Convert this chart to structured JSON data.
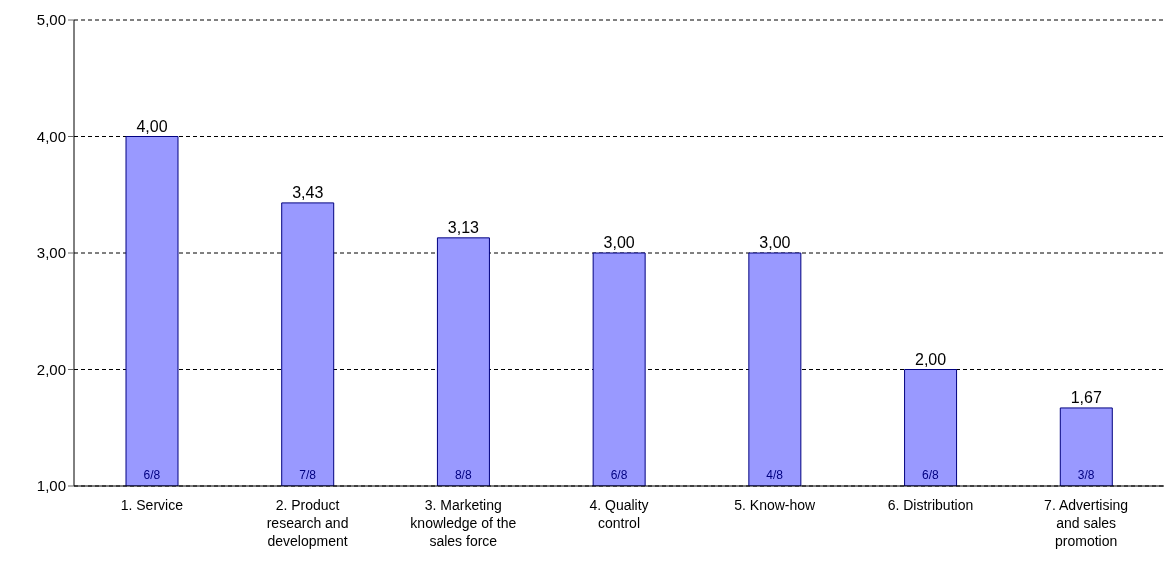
{
  "chart_data": {
    "type": "bar",
    "categories": [
      "1. Service",
      "2. Product research and development",
      "3. Marketing knowledge of the sales force",
      "4. Quality control",
      "5. Know-how",
      "6. Distribution",
      "7. Advertising and sales promotion"
    ],
    "values": [
      4.0,
      3.43,
      3.13,
      3.0,
      3.0,
      2.0,
      1.67
    ],
    "value_labels": [
      "4,00",
      "3,43",
      "3,13",
      "3,00",
      "3,00",
      "2,00",
      "1,67"
    ],
    "color": "#9999ff",
    "ylim": [
      1,
      5
    ],
    "yticks": [
      {
        "value": 1,
        "label": "1,00"
      },
      {
        "value": 2,
        "label": "2,00"
      },
      {
        "value": 3,
        "label": "3,00"
      },
      {
        "value": 4,
        "label": "4,00"
      },
      {
        "value": 5,
        "label": "5,00"
      }
    ],
    "grid": "y",
    "annotations": [
      "6/8",
      "7/8",
      "8/8",
      "6/8",
      "4/8",
      "6/8",
      "3/8"
    ]
  }
}
